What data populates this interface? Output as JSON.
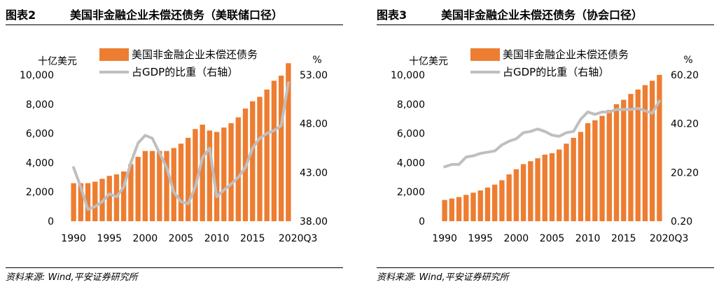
{
  "colors": {
    "bar": "#ED7D31",
    "line": "#BFBFBF",
    "text": "#000000"
  },
  "panels": [
    {
      "figure_no": "图表2",
      "source": "资料来源: Wind,平安证券研究所",
      "chart_data": {
        "type": "bar",
        "title": "美国非金融企业未偿还债务（美联储口径）",
        "y_left_label": "十亿美元",
        "y_right_label": "%",
        "x_tick_labels": [
          "1990",
          "1995",
          "2000",
          "2005",
          "2010",
          "2015",
          "2020Q3"
        ],
        "x_tick_indices": [
          0,
          5,
          10,
          15,
          20,
          25,
          30
        ],
        "left_ticks": [
          "0",
          "2,000",
          "4,000",
          "6,000",
          "8,000",
          "10,000"
        ],
        "right_ticks": [
          "38.00",
          "43.00",
          "48.00",
          "53.00"
        ],
        "ylim_left": [
          0,
          10000
        ],
        "ylim_right": [
          38,
          53
        ],
        "legend_position": "top-center",
        "categories": [
          "1990",
          "1991",
          "1992",
          "1993",
          "1994",
          "1995",
          "1996",
          "1997",
          "1998",
          "1999",
          "2000",
          "2001",
          "2002",
          "2003",
          "2004",
          "2005",
          "2006",
          "2007",
          "2008",
          "2009",
          "2010",
          "2011",
          "2012",
          "2013",
          "2014",
          "2015",
          "2016",
          "2017",
          "2018",
          "2019",
          "2020Q3"
        ],
        "series": [
          {
            "name": "美国非金融企业未偿还债务",
            "type": "bar",
            "axis": "left",
            "values": [
              2600,
              2600,
              2600,
              2700,
              2900,
              3100,
              3200,
              3400,
              3900,
              4400,
              4800,
              4800,
              4800,
              4800,
              5000,
              5300,
              5700,
              6300,
              6600,
              6200,
              6100,
              6400,
              6700,
              7100,
              7700,
              8200,
              8500,
              9000,
              9600,
              9950,
              10800
            ]
          },
          {
            "name": "占GDP的比重（右轴）",
            "type": "line",
            "axis": "right",
            "values": [
              43.5,
              41.5,
              39.2,
              39.5,
              40.0,
              40.8,
              40.5,
              41.5,
              44.0,
              46.0,
              46.8,
              46.5,
              45.0,
              43.5,
              41.0,
              40.0,
              39.8,
              41.5,
              44.5,
              45.5,
              40.5,
              41.2,
              41.8,
              42.5,
              43.5,
              45.5,
              46.5,
              47.0,
              47.3,
              47.8,
              52.2
            ]
          }
        ]
      }
    },
    {
      "figure_no": "图表3",
      "source": "资料来源: Wind,平安证券研究所",
      "chart_data": {
        "type": "bar",
        "title": "美国非金融企业未偿还债务（协会口径）",
        "y_left_label": "十亿美元",
        "y_right_label": "%",
        "x_tick_labels": [
          "1990",
          "1995",
          "2000",
          "2005",
          "2010",
          "2015",
          "2020Q3"
        ],
        "x_tick_indices": [
          0,
          5,
          10,
          15,
          20,
          25,
          30
        ],
        "left_ticks": [
          "0",
          "2,000",
          "4,000",
          "6,000",
          "8,000",
          "10,000"
        ],
        "right_ticks": [
          "0.20",
          "20.20",
          "40.20",
          "60.20"
        ],
        "ylim_left": [
          0,
          10000
        ],
        "ylim_right": [
          0.2,
          60.2
        ],
        "legend_position": "top-center",
        "categories": [
          "1990",
          "1991",
          "1992",
          "1993",
          "1994",
          "1995",
          "1996",
          "1997",
          "1998",
          "1999",
          "2000",
          "2001",
          "2002",
          "2003",
          "2004",
          "2005",
          "2006",
          "2007",
          "2008",
          "2009",
          "2010",
          "2011",
          "2012",
          "2013",
          "2014",
          "2015",
          "2016",
          "2017",
          "2018",
          "2019",
          "2020Q3"
        ],
        "series": [
          {
            "name": "美国非金融企业未偿还债务",
            "type": "bar",
            "axis": "left",
            "values": [
              1450,
              1550,
              1650,
              1800,
              1950,
              2100,
              2300,
              2500,
              2800,
              3200,
              3550,
              3900,
              4100,
              4300,
              4550,
              4650,
              4900,
              5300,
              5700,
              6100,
              6700,
              6900,
              7200,
              7600,
              8000,
              8300,
              8700,
              9000,
              9300,
              9600,
              10000
            ]
          },
          {
            "name": "占GDP的比重（右轴）",
            "type": "line",
            "axis": "right",
            "values": [
              22.5,
              23.5,
              23.5,
              26.5,
              27.0,
              28.0,
              28.5,
              29.0,
              31.5,
              33.0,
              34.0,
              36.5,
              37.0,
              38.0,
              37.0,
              35.5,
              35.0,
              36.5,
              37.0,
              42.0,
              45.0,
              44.0,
              45.0,
              45.0,
              46.0,
              46.0,
              46.0,
              46.5,
              45.5,
              44.5,
              49.5
            ]
          }
        ]
      }
    }
  ]
}
